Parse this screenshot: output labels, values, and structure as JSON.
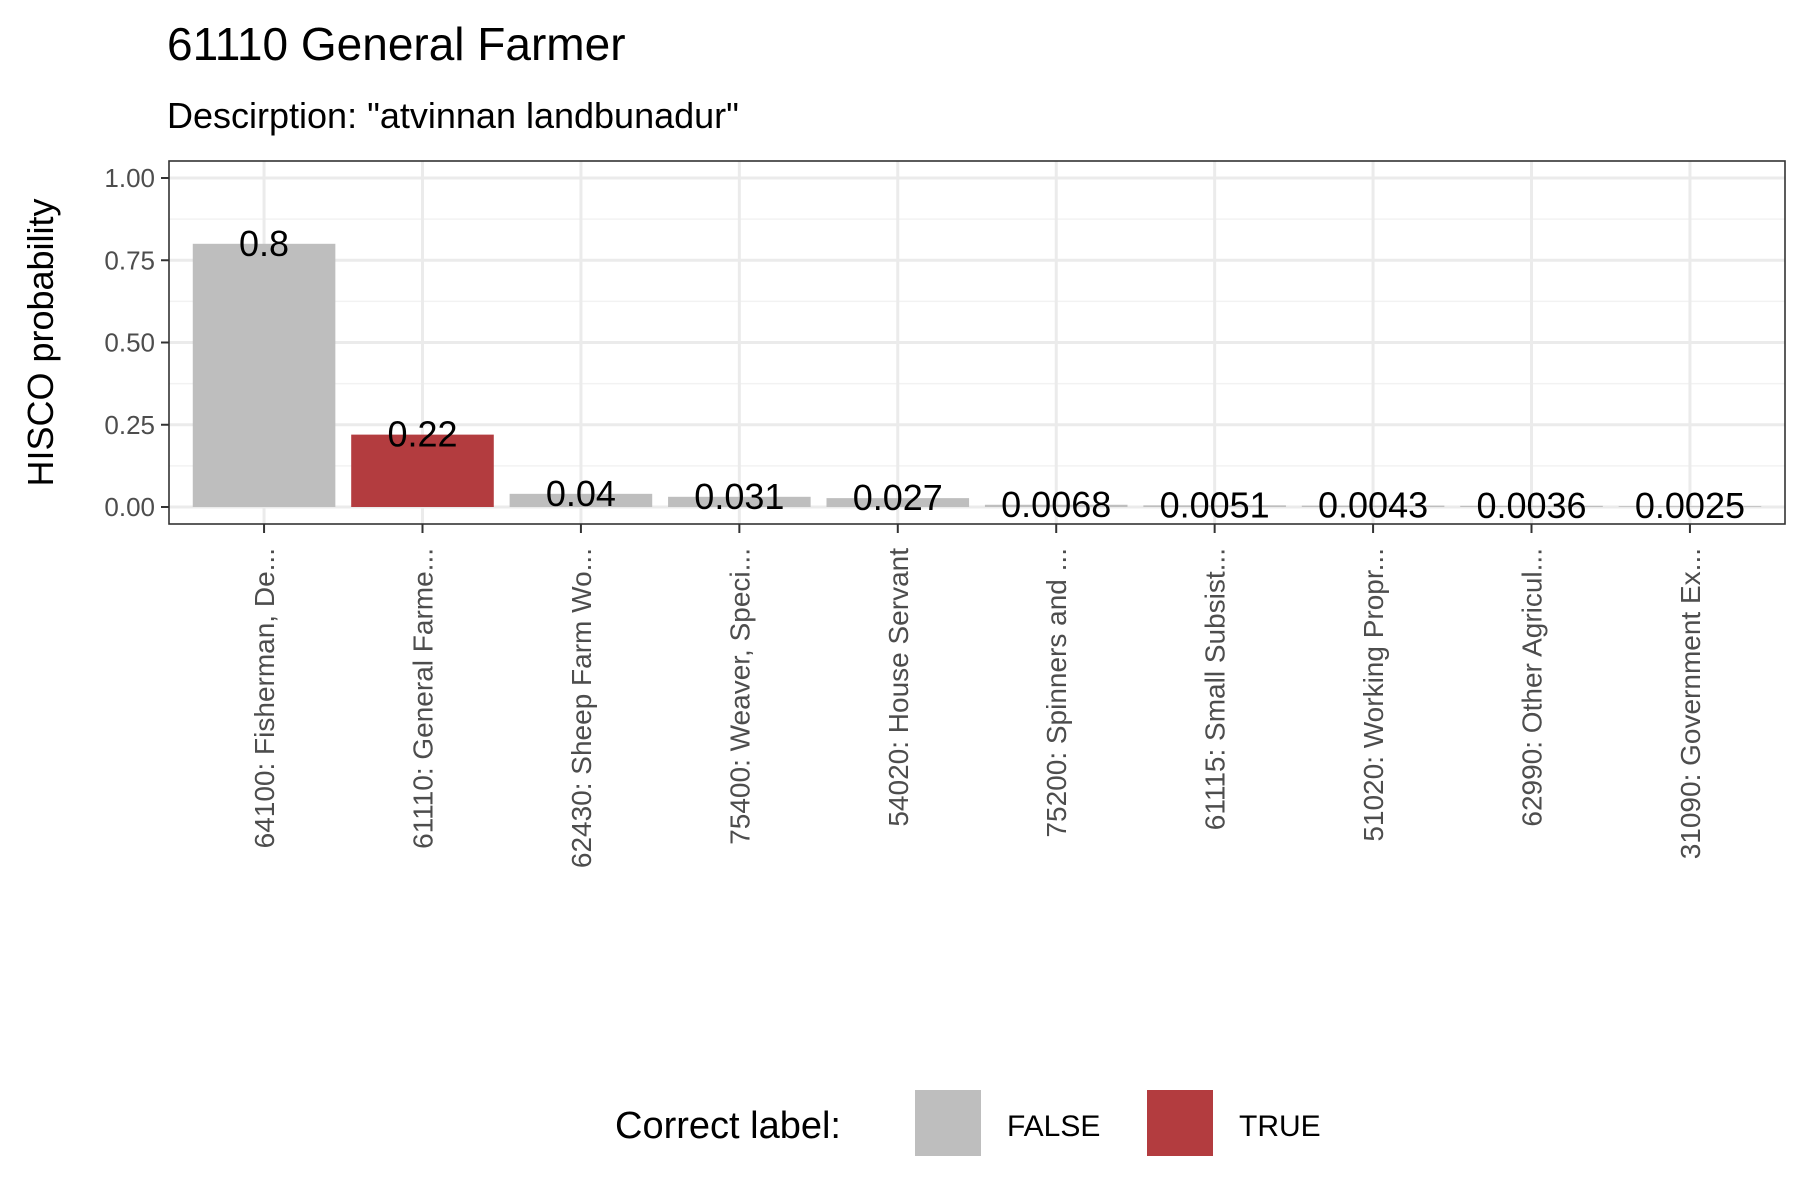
{
  "chart_data": {
    "type": "bar",
    "title": "61110 General Farmer",
    "subtitle": "Descirption: \"atvinnan landbunadur\"",
    "ylabel": "HISCO probability",
    "xlabel": "",
    "ylim": [
      0,
      1
    ],
    "yticks": [
      "0.00",
      "0.25",
      "0.50",
      "0.75",
      "1.00"
    ],
    "categories": [
      "64100: Fisherman, De...",
      "61110: General Farme...",
      "62430: Sheep Farm Wo...",
      "75400: Weaver, Speci...",
      "54020: House Servant",
      "75200: Spinners and ...",
      "61115: Small Subsist...",
      "51020: Working Propr...",
      "62990: Other Agricul...",
      "31090: Government Ex..."
    ],
    "values": [
      0.8,
      0.22,
      0.04,
      0.031,
      0.027,
      0.0068,
      0.0051,
      0.0043,
      0.0036,
      0.0025
    ],
    "value_labels": [
      "0.8",
      "0.22",
      "0.04",
      "0.031",
      "0.027",
      "0.0068",
      "0.0051",
      "0.0043",
      "0.0036",
      "0.0025"
    ],
    "correct": [
      false,
      true,
      false,
      false,
      false,
      false,
      false,
      false,
      false,
      false
    ],
    "grid": true,
    "legend": {
      "title": "Correct label:",
      "placement": "bottom",
      "entries": [
        {
          "label": "FALSE",
          "color": "#bebebe"
        },
        {
          "label": "TRUE",
          "color": "#b33c3f"
        }
      ]
    }
  }
}
